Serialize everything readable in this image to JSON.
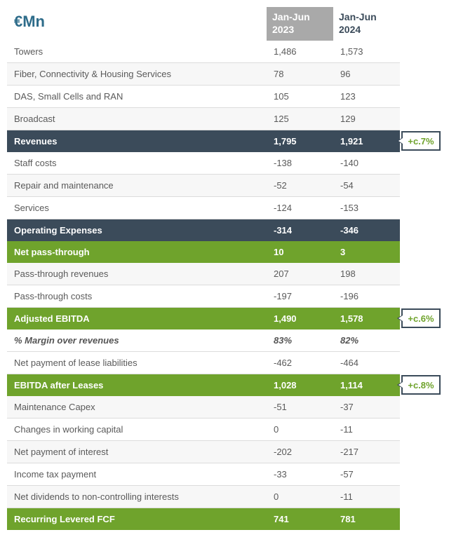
{
  "header": {
    "unit": "€Mn",
    "period1_line1": "Jan-Jun",
    "period1_line2": "2023",
    "period2_line1": "Jan-Jun",
    "period2_line2": "2024"
  },
  "colors": {
    "dark_row": "#3b4b5a",
    "green_row": "#6fa32c",
    "header_grey": "#a9a9a9",
    "title_teal": "#2e6c8a",
    "text_grey": "#5a5a5a",
    "divider": "#dcdcdc",
    "callout_text": "#6fa32c",
    "callout_border": "#3b4b5a"
  },
  "rows": [
    {
      "style": "plain",
      "label": "Towers",
      "v1": "1,486",
      "v2": "1,573"
    },
    {
      "style": "plain",
      "label": "Fiber, Connectivity & Housing Services",
      "v1": "78",
      "v2": "96"
    },
    {
      "style": "plain",
      "label": "DAS, Small Cells and RAN",
      "v1": "105",
      "v2": "123"
    },
    {
      "style": "plain",
      "label": "Broadcast",
      "v1": "125",
      "v2": "129"
    },
    {
      "style": "dark",
      "label": "Revenues",
      "v1": "1,795",
      "v2": "1,921",
      "callout": "+c.7%"
    },
    {
      "style": "plain",
      "label": "Staff costs",
      "v1": "-138",
      "v2": "-140"
    },
    {
      "style": "plain",
      "label": "Repair and maintenance",
      "v1": "-52",
      "v2": "-54"
    },
    {
      "style": "plain",
      "label": "Services",
      "v1": "-124",
      "v2": "-153"
    },
    {
      "style": "dark",
      "label": "Operating Expenses",
      "v1": "-314",
      "v2": "-346"
    },
    {
      "style": "green",
      "label": "Net pass-through",
      "v1": "10",
      "v2": "3"
    },
    {
      "style": "plain",
      "label": "Pass-through revenues",
      "v1": "207",
      "v2": "198"
    },
    {
      "style": "plain",
      "label": "Pass-through costs",
      "v1": "-197",
      "v2": "-196"
    },
    {
      "style": "green",
      "label": "Adjusted EBITDA",
      "v1": "1,490",
      "v2": "1,578",
      "callout": "+c.6%"
    },
    {
      "style": "italic",
      "label": "% Margin over revenues",
      "v1": "83%",
      "v2": "82%"
    },
    {
      "style": "plain",
      "label": "Net payment of lease liabilities",
      "v1": "-462",
      "v2": "-464"
    },
    {
      "style": "green",
      "label": "EBITDA after Leases",
      "v1": "1,028",
      "v2": "1,114",
      "callout": "+c.8%"
    },
    {
      "style": "plain",
      "label": "Maintenance Capex",
      "v1": "-51",
      "v2": "-37"
    },
    {
      "style": "plain",
      "label": "Changes in working capital",
      "v1": "0",
      "v2": "-11"
    },
    {
      "style": "plain",
      "label": "Net payment of interest",
      "v1": "-202",
      "v2": "-217"
    },
    {
      "style": "plain",
      "label": "Income tax payment",
      "v1": "-33",
      "v2": "-57"
    },
    {
      "style": "plain",
      "label": "Net dividends to non-controlling interests",
      "v1": "0",
      "v2": "-11"
    },
    {
      "style": "green",
      "label": "Recurring Levered FCF",
      "v1": "741",
      "v2": "781"
    }
  ]
}
